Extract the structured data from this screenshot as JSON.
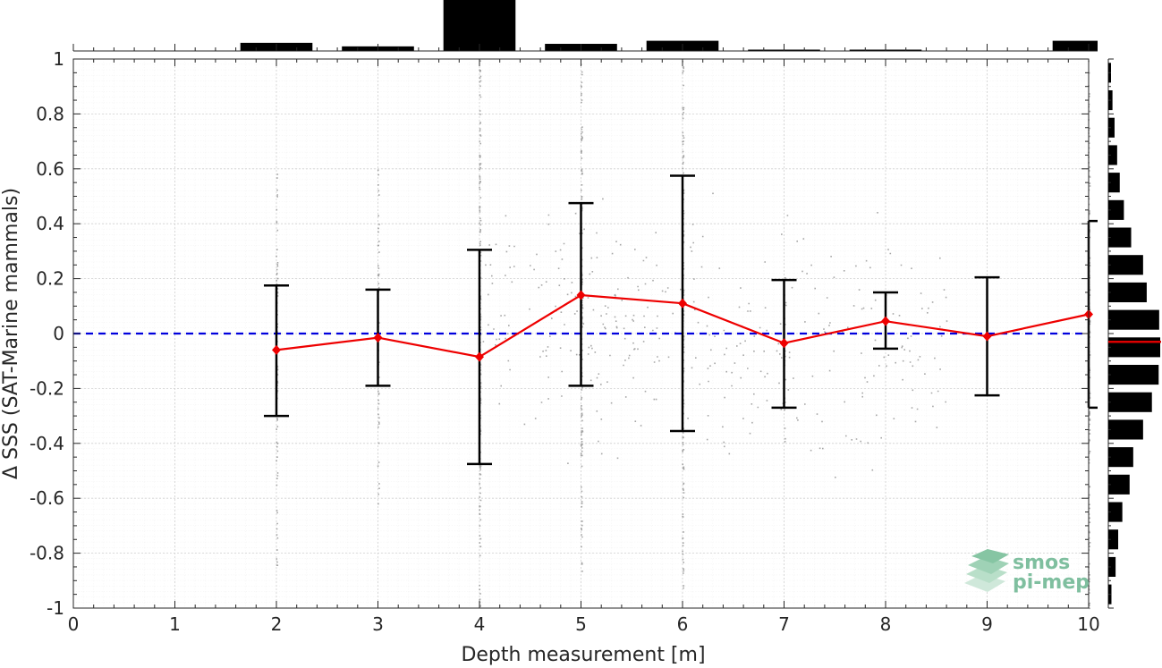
{
  "chart_data": {
    "type": "line",
    "title": "",
    "xlabel": "Depth measurement [m]",
    "ylabel": "Δ SSS (SAT-Marine mammals)",
    "xlim": [
      0,
      10
    ],
    "ylim": [
      -1,
      1
    ],
    "x_ticks": [
      "0",
      "1",
      "2",
      "3",
      "4",
      "5",
      "6",
      "7",
      "8",
      "9",
      "10"
    ],
    "y_ticks": [
      "1",
      "0.8",
      "0.6",
      "0.4",
      "0.2",
      "0",
      "-0.2",
      "-0.4",
      "-0.6",
      "-0.8",
      "-1"
    ],
    "grid": true,
    "series": [
      {
        "x": [
          2,
          3,
          4,
          5,
          6,
          7,
          8,
          9,
          10
        ],
        "y": [
          -0.06,
          -0.015,
          -0.085,
          0.14,
          0.11,
          -0.035,
          0.045,
          -0.01,
          0.07
        ],
        "error_low": [
          -0.3,
          -0.19,
          -0.475,
          -0.19,
          -0.355,
          -0.27,
          -0.055,
          -0.225,
          -0.27
        ],
        "error_high": [
          0.175,
          0.16,
          0.305,
          0.475,
          0.575,
          0.195,
          0.15,
          0.205,
          0.41
        ],
        "color": "#ee0000"
      }
    ],
    "reference_line": {
      "y": 0,
      "color": "#0000dd",
      "style": "dashed"
    },
    "scatter_color": "#8a8a8a",
    "top_histogram": {
      "bin_centers": [
        2,
        3,
        4,
        5,
        6,
        7,
        8,
        10
      ],
      "relative_heights": [
        0.16,
        0.09,
        1.0,
        0.14,
        0.2,
        0.02,
        0.02,
        0.2
      ]
    },
    "right_histogram": {
      "bin_centers": [
        0.95,
        0.85,
        0.75,
        0.65,
        0.55,
        0.45,
        0.35,
        0.25,
        0.15,
        0.05,
        -0.05,
        -0.15,
        -0.25,
        -0.35,
        -0.45,
        -0.55,
        -0.65,
        -0.75,
        -0.85,
        -0.95
      ],
      "relative_lengths": [
        0.05,
        0.08,
        0.12,
        0.17,
        0.22,
        0.3,
        0.44,
        0.67,
        0.74,
        0.98,
        1.0,
        0.97,
        0.84,
        0.67,
        0.48,
        0.41,
        0.27,
        0.19,
        0.14,
        0.06
      ],
      "median_y": -0.03,
      "median_color": "#dd0000"
    },
    "logo": {
      "line1": "smos",
      "line2": "pi-mep",
      "color": "#7fbf9f"
    }
  }
}
